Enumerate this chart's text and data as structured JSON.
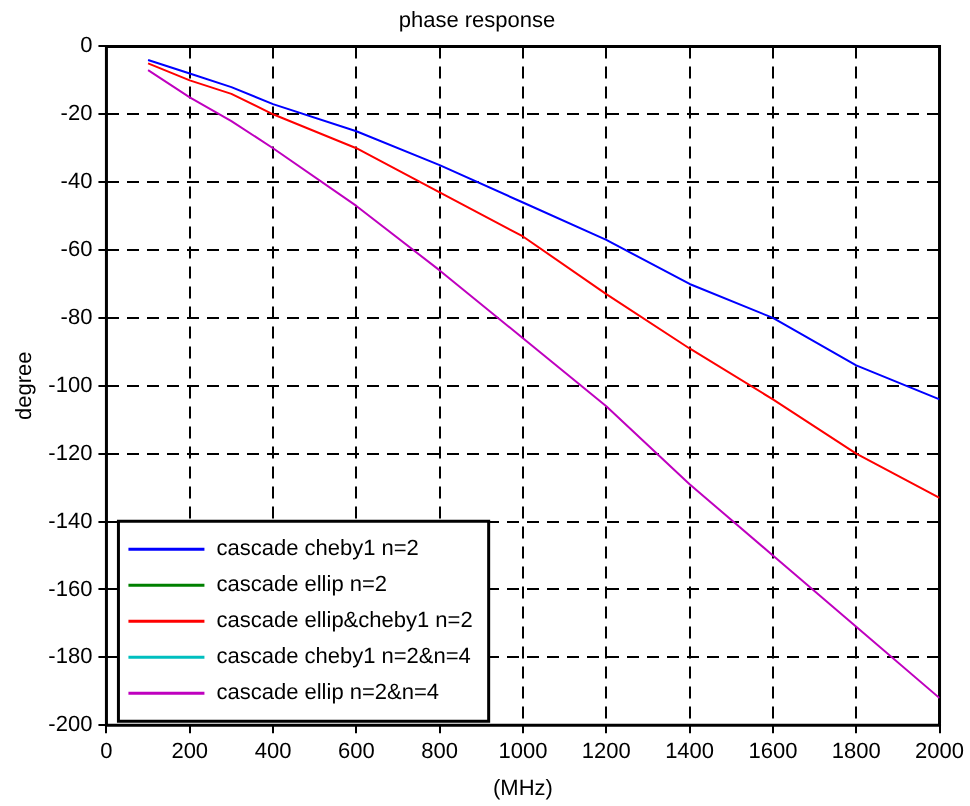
{
  "chart_data": {
    "type": "line",
    "title": "phase response",
    "xlabel": "(MHz)",
    "ylabel": "degree",
    "x": [
      100,
      200,
      300,
      400,
      600,
      800,
      1000,
      1200,
      1400,
      1600,
      1800,
      2000
    ],
    "series": [
      {
        "name": "cascade cheby1 n=2",
        "color": "#0000ff",
        "values": [
          -4,
          -8,
          -12,
          -17,
          -25,
          -35,
          -46,
          -57,
          -70,
          -80,
          -94,
          -104
        ]
      },
      {
        "name": "cascade ellip n=2",
        "color": "#008000",
        "values": [
          null,
          null,
          null,
          null,
          null,
          null,
          null,
          null,
          null,
          null,
          null,
          null
        ]
      },
      {
        "name": "cascade ellip&cheby1 n=2",
        "color": "#ff0000",
        "values": [
          -5,
          -10,
          -14,
          -20,
          -30,
          -43,
          -56,
          -73,
          -89,
          -104,
          -120,
          -133
        ]
      },
      {
        "name": "cascade cheby1 n=2&n=4",
        "color": "#00bfbf",
        "values": [
          null,
          null,
          null,
          null,
          null,
          null,
          null,
          null,
          null,
          null,
          null,
          null
        ]
      },
      {
        "name": "cascade ellip n=2&n=4",
        "color": "#bf00bf",
        "values": [
          -7,
          -15,
          -22,
          -30,
          -47,
          -66,
          -86,
          -106,
          -129,
          -150,
          -171,
          -192
        ]
      }
    ],
    "xlim": [
      0,
      2000
    ],
    "xticks": [
      0,
      200,
      400,
      600,
      800,
      1000,
      1200,
      1400,
      1600,
      1800,
      2000
    ],
    "ylim": [
      -200,
      0
    ],
    "yticks": [
      -200,
      -180,
      -160,
      -140,
      -120,
      -100,
      -80,
      -60,
      -40,
      -20,
      0
    ],
    "grid": true,
    "legend": "bottom left",
    "marker": "none",
    "line_style": "solid"
  }
}
